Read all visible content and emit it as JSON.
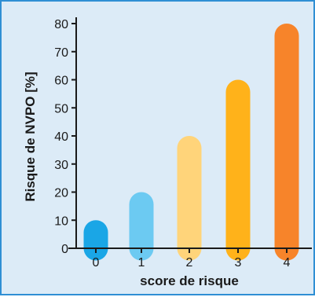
{
  "chart_data": {
    "type": "bar",
    "categories": [
      "0",
      "1",
      "2",
      "3",
      "4"
    ],
    "values": [
      10,
      20,
      40,
      60,
      80
    ],
    "colors": [
      "#1aa6e6",
      "#6ccaf2",
      "#ffd47a",
      "#ffb21a",
      "#f7842a"
    ],
    "xlabel": "score de risque",
    "ylabel": "Risque de NVPO [%]",
    "ylim": [
      0,
      80
    ],
    "yticks": [
      "0",
      "10",
      "20",
      "30",
      "40",
      "50",
      "60",
      "70",
      "80"
    ],
    "grid": false,
    "legend": "none"
  }
}
